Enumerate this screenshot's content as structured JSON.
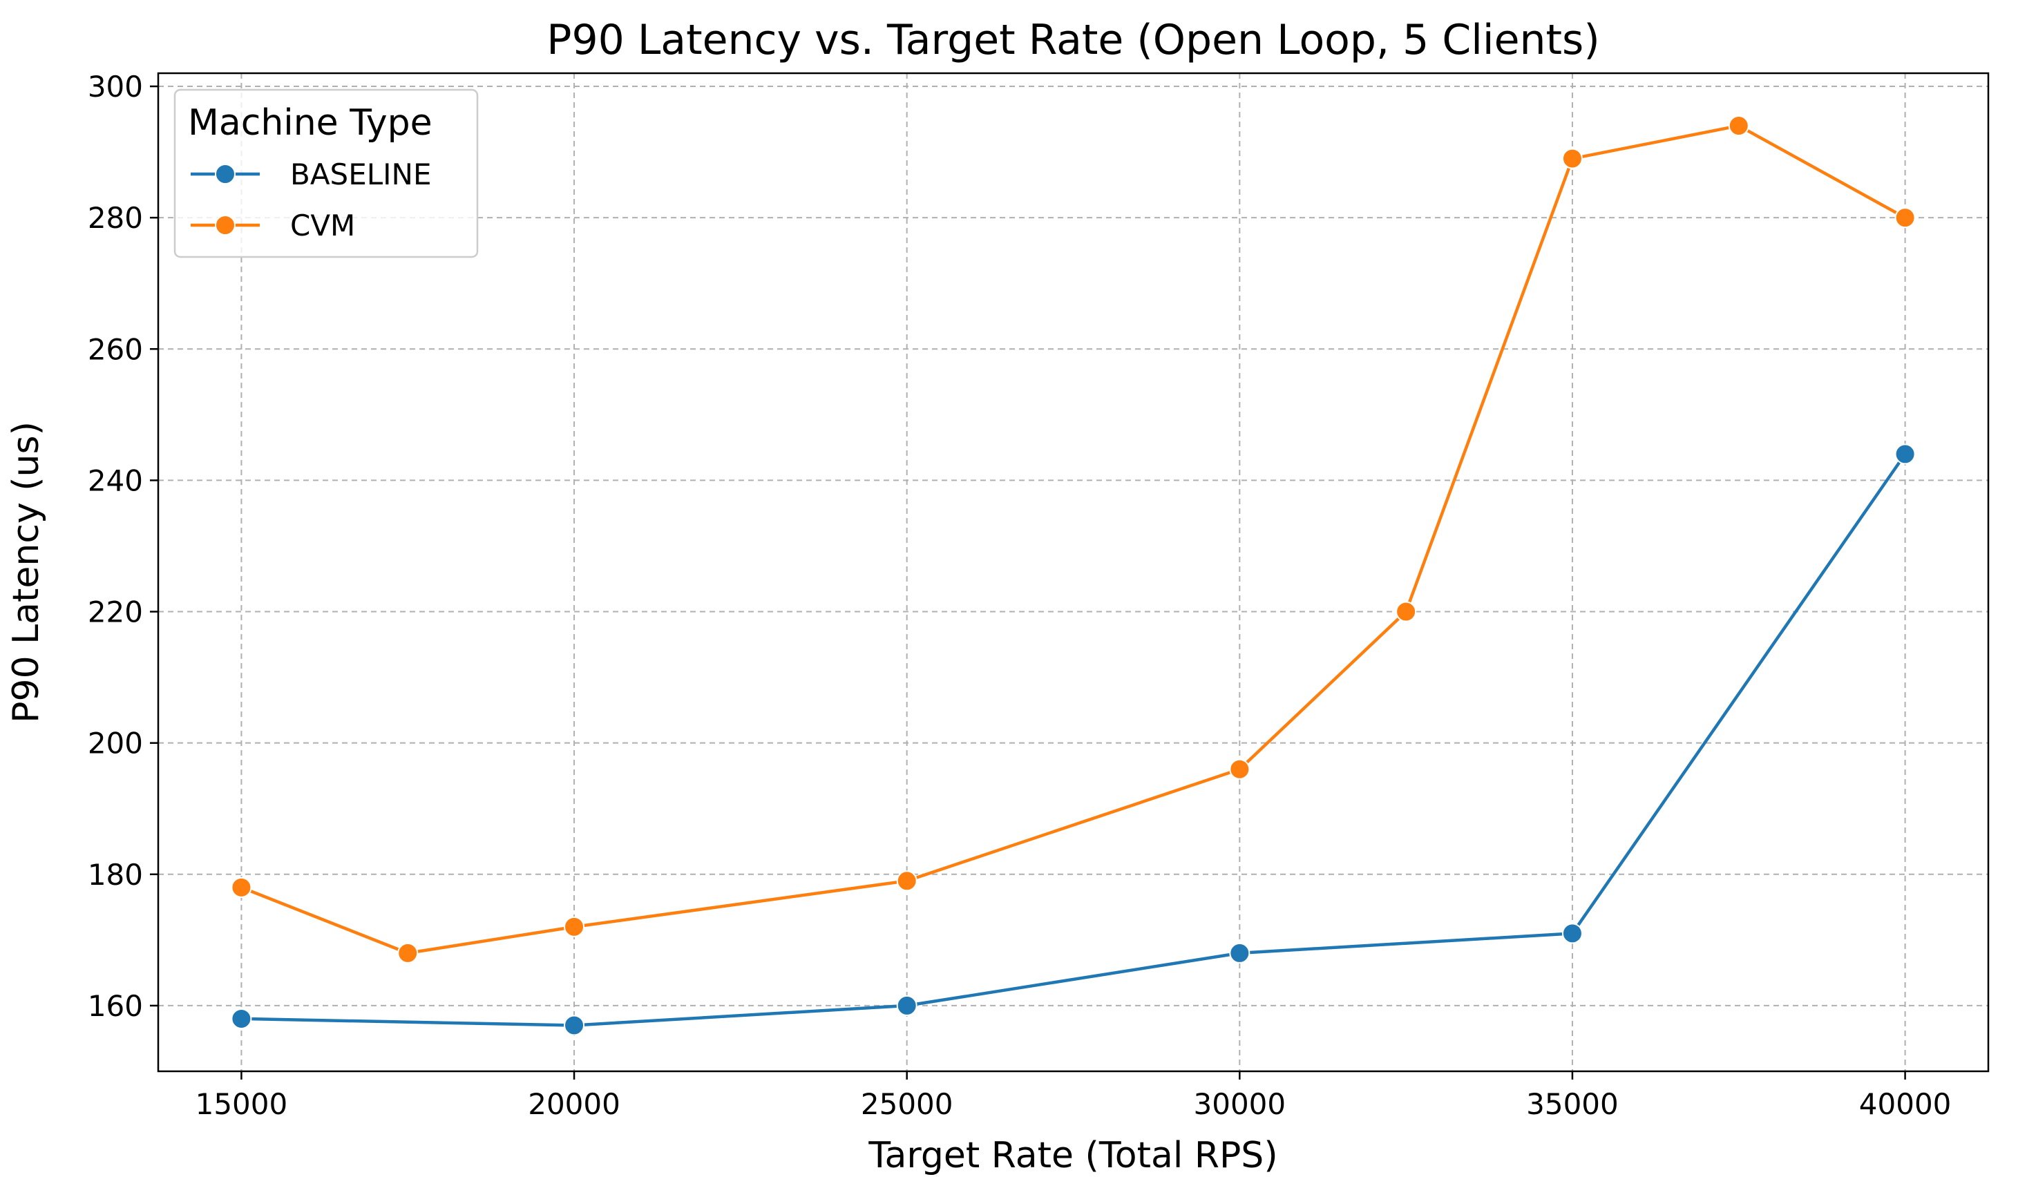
{
  "chart_data": {
    "type": "line",
    "title": "P90 Latency vs. Target Rate (Open Loop, 5 Clients)",
    "xlabel": "Target Rate (Total RPS)",
    "ylabel": "P90 Latency (us)",
    "xlim": [
      13750,
      41250
    ],
    "ylim": [
      150,
      302
    ],
    "xticks": [
      15000,
      20000,
      25000,
      30000,
      35000,
      40000
    ],
    "yticks": [
      160,
      180,
      200,
      220,
      240,
      260,
      280,
      300
    ],
    "grid": true,
    "legend": {
      "title": "Machine Type",
      "placement": "top-left"
    },
    "series": [
      {
        "name": "BASELINE",
        "color": "#1f77b4",
        "x": [
          15000,
          20000,
          25000,
          30000,
          35000,
          40000
        ],
        "values": [
          158,
          157,
          160,
          168,
          171,
          244
        ]
      },
      {
        "name": "CVM",
        "color": "#ff7f0e",
        "x": [
          15000,
          17500,
          20000,
          25000,
          30000,
          32500,
          35000,
          37500,
          40000
        ],
        "values": [
          178,
          168,
          172,
          179,
          196,
          220,
          289,
          294,
          280
        ]
      }
    ]
  }
}
